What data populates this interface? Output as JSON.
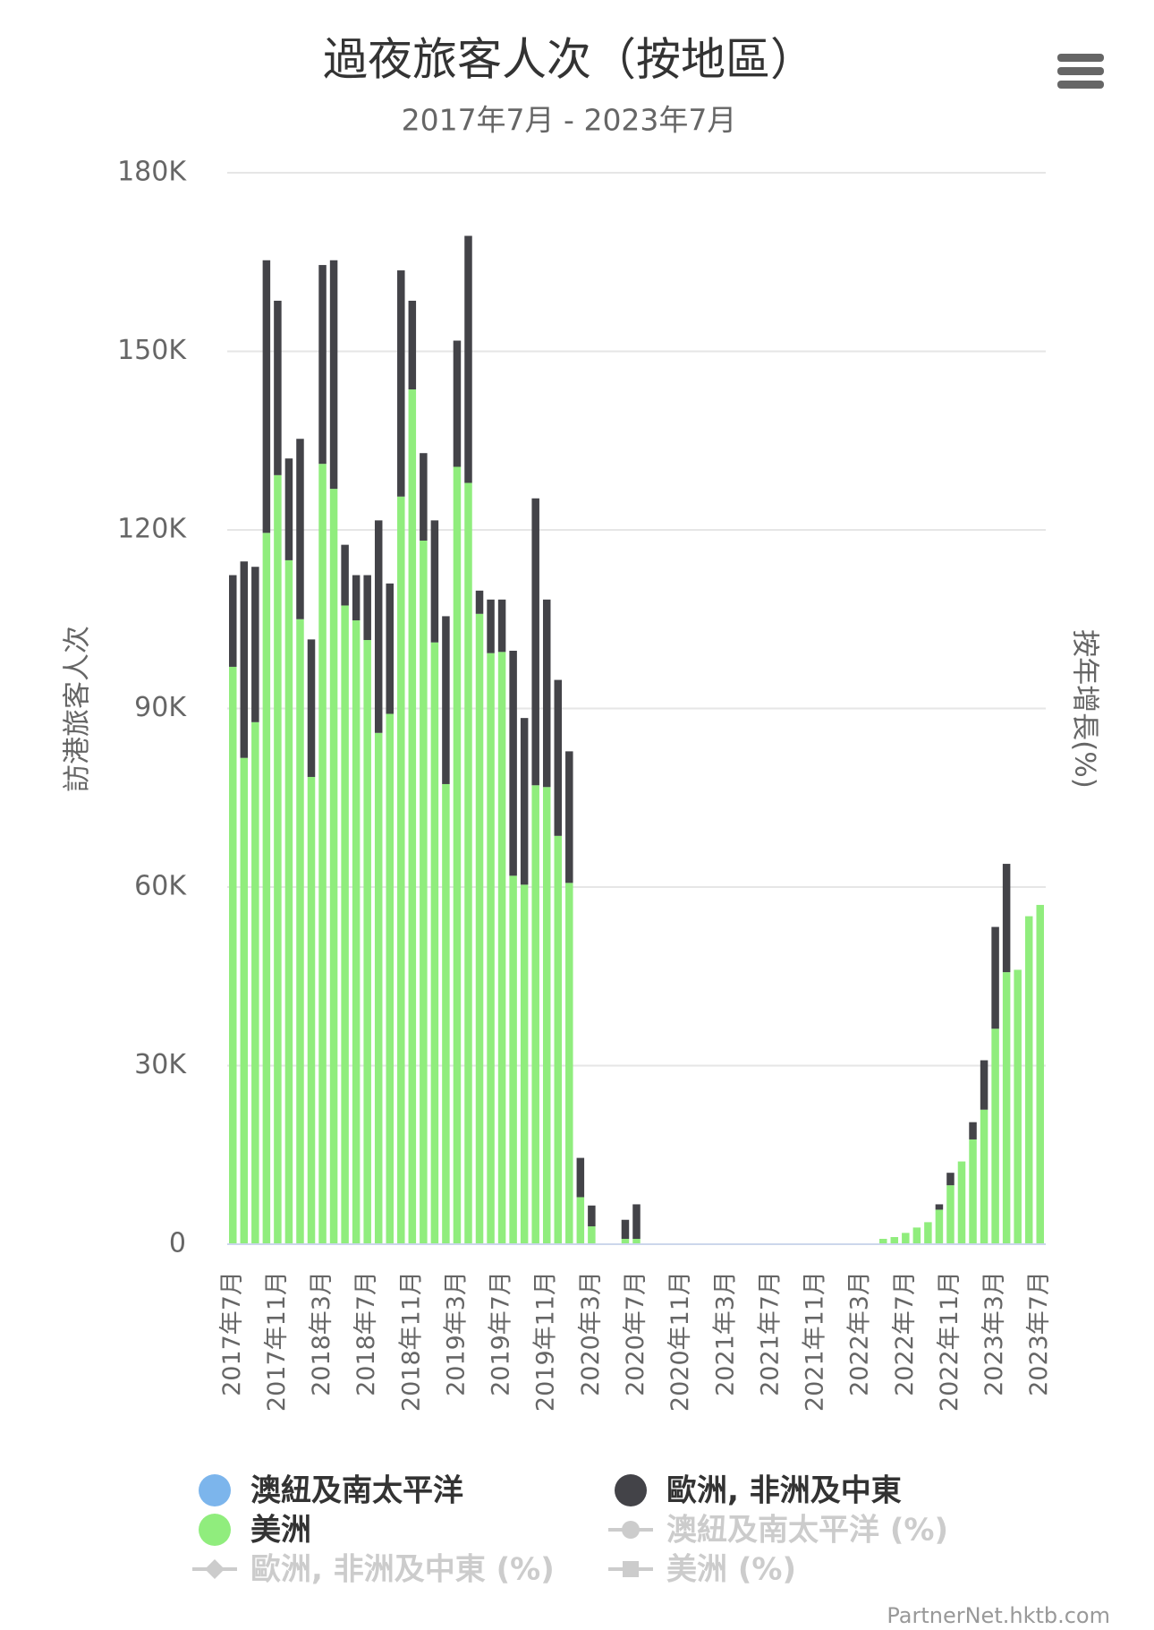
{
  "chart_data": {
    "type": "stacked_bar",
    "title": "過夜旅客人次（按地區）",
    "subtitle": "2017年7月 - 2023年7月",
    "y_axis_label": "訪港旅客人次",
    "y2_axis_label": "按年增長(%)",
    "credit": "PartnerNet.hktb.com",
    "categories": [
      "2017年7月",
      null,
      null,
      null,
      "2017年11月",
      null,
      null,
      null,
      "2018年3月",
      null,
      null,
      null,
      "2018年7月",
      null,
      null,
      null,
      "2018年11月",
      null,
      null,
      null,
      "2019年3月",
      null,
      null,
      null,
      "2019年7月",
      null,
      null,
      null,
      "2019年11月",
      null,
      null,
      null,
      "2020年3月",
      null,
      null,
      null,
      "2020年7月",
      null,
      null,
      null,
      "2020年11月",
      null,
      null,
      null,
      "2021年3月",
      null,
      null,
      null,
      "2021年7月",
      null,
      null,
      null,
      "2021年11月",
      null,
      null,
      null,
      "2022年3月",
      null,
      null,
      null,
      "2022年7月",
      null,
      null,
      null,
      "2022年11月",
      null,
      null,
      null,
      "2023年3月",
      null,
      null,
      null,
      "2023年7月"
    ],
    "series": [
      {
        "name": "澳紐及南太平洋",
        "color": "#7cb5ec",
        "values": [
          0,
          0,
          0,
          0,
          0,
          0,
          0,
          0,
          0,
          0,
          0,
          0,
          0,
          0,
          0,
          0,
          0,
          0,
          0,
          0,
          0,
          0,
          0,
          0,
          0,
          0,
          0,
          0,
          0,
          0,
          0,
          0,
          0,
          0,
          0,
          0,
          0,
          0,
          0,
          0,
          0,
          0,
          0,
          0,
          0,
          0,
          0,
          0,
          0,
          0,
          0,
          0,
          0,
          0,
          0,
          0,
          0,
          0,
          0,
          0,
          0,
          0,
          0,
          0,
          0,
          0,
          0,
          0,
          0,
          0,
          0,
          0,
          0
        ]
      },
      {
        "name": "歐洲, 非洲及中東",
        "color": "#434348",
        "values": [
          15400,
          33000,
          26100,
          45800,
          29300,
          17100,
          30300,
          23100,
          33400,
          38400,
          10200,
          7600,
          10900,
          35700,
          21900,
          38000,
          14900,
          14700,
          20500,
          28200,
          21200,
          41500,
          3900,
          9000,
          8800,
          37800,
          28000,
          48200,
          31500,
          26200,
          22100,
          6600,
          3500,
          0,
          0,
          3200,
          5800,
          0,
          0,
          0,
          0,
          0,
          0,
          0,
          0,
          0,
          0,
          0,
          0,
          0,
          0,
          0,
          0,
          0,
          0,
          0,
          0,
          0,
          0,
          0,
          0,
          0,
          0,
          900,
          2100,
          0,
          2900,
          8300,
          17100,
          18200,
          0,
          0,
          0
        ]
      },
      {
        "name": "美洲",
        "color": "#90ed7d",
        "values": [
          97000,
          81700,
          87700,
          119500,
          129200,
          114900,
          105000,
          78500,
          131100,
          126900,
          107300,
          104800,
          101500,
          85900,
          89100,
          125600,
          143600,
          118200,
          101100,
          77300,
          130600,
          127900,
          105900,
          99300,
          99500,
          61900,
          60400,
          77100,
          76800,
          68600,
          60700,
          7900,
          3000,
          0,
          0,
          900,
          900,
          0,
          0,
          0,
          0,
          0,
          0,
          0,
          0,
          0,
          0,
          0,
          0,
          0,
          0,
          0,
          0,
          0,
          0,
          0,
          0,
          0,
          900,
          1200,
          1900,
          2800,
          3700,
          5800,
          9900,
          13900,
          17600,
          22600,
          36200,
          45700,
          46100,
          55100,
          57000
        ]
      }
    ],
    "hidden_series": [
      {
        "name": "澳紐及南太平洋 (%)",
        "marker": "circle"
      },
      {
        "name": "歐洲, 非洲及中東 (%)",
        "marker": "diamond"
      },
      {
        "name": "美洲 (%)",
        "marker": "square"
      }
    ],
    "ylim": [
      0,
      180000
    ],
    "yticks": [
      {
        "value": 0,
        "label": "0"
      },
      {
        "value": 30000,
        "label": "30K"
      },
      {
        "value": 60000,
        "label": "60K"
      },
      {
        "value": 90000,
        "label": "90K"
      },
      {
        "value": 120000,
        "label": "120K"
      },
      {
        "value": 150000,
        "label": "150K"
      },
      {
        "value": 180000,
        "label": "180K"
      }
    ],
    "grid": true
  }
}
